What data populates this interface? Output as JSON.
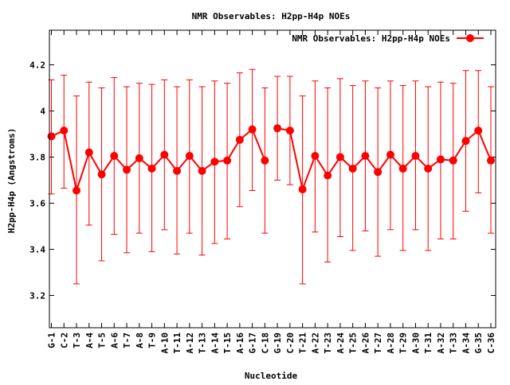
{
  "chart_data": {
    "type": "line",
    "title": "NMR Observables: H2pp-H4p NOEs",
    "xlabel": "Nucleotide",
    "ylabel": "H2pp-H4p (Angstroms)",
    "ylim": [
      3.06,
      4.35
    ],
    "yticks": [
      3.2,
      3.4,
      3.6,
      3.8,
      4,
      4.2
    ],
    "ytick_labels": [
      "3.2",
      "3.4",
      "3.6",
      "3.8",
      "4",
      "4.2"
    ],
    "grid": false,
    "legend": "top-right",
    "color": "#ff0000",
    "categories": [
      "G-1",
      "C-2",
      "T-3",
      "A-4",
      "T-5",
      "A-6",
      "T-7",
      "A-8",
      "T-9",
      "A-10",
      "T-11",
      "A-12",
      "T-13",
      "A-14",
      "T-15",
      "A-16",
      "G-17",
      "C-18",
      "G-19",
      "C-20",
      "T-21",
      "A-22",
      "T-23",
      "A-24",
      "T-25",
      "A-26",
      "T-27",
      "A-28",
      "T-29",
      "A-30",
      "T-31",
      "A-32",
      "T-33",
      "A-34",
      "G-35",
      "C-36"
    ],
    "series": [
      {
        "name": "NMR Observables: H2pp-H4p NOEs",
        "segments": [
          {
            "x": [
              1,
              2,
              3,
              4,
              5,
              6,
              7,
              8,
              9,
              10,
              11,
              12,
              13,
              14,
              15,
              16,
              17,
              18
            ],
            "y": [
              3.89,
              3.915,
              3.655,
              3.82,
              3.725,
              3.805,
              3.745,
              3.795,
              3.75,
              3.81,
              3.74,
              3.805,
              3.74,
              3.78,
              3.785,
              3.875,
              3.92,
              3.785
            ],
            "err_low": [
              3.64,
              3.665,
              3.25,
              3.505,
              3.35,
              3.465,
              3.385,
              3.47,
              3.39,
              3.485,
              3.38,
              3.47,
              3.375,
              3.425,
              3.445,
              3.585,
              3.655,
              3.47
            ],
            "err_high": [
              4.135,
              4.155,
              4.065,
              4.125,
              4.1,
              4.145,
              4.105,
              4.12,
              4.115,
              4.135,
              4.105,
              4.135,
              4.105,
              4.13,
              4.12,
              4.165,
              4.18,
              4.1
            ]
          },
          {
            "x": [
              19,
              20,
              21,
              22,
              23,
              24,
              25,
              26,
              27,
              28,
              29,
              30,
              31,
              32,
              33,
              34,
              35,
              36
            ],
            "y": [
              3.925,
              3.915,
              3.66,
              3.805,
              3.72,
              3.8,
              3.75,
              3.805,
              3.735,
              3.81,
              3.75,
              3.805,
              3.75,
              3.79,
              3.785,
              3.87,
              3.915,
              3.785
            ],
            "err_low": [
              3.7,
              3.68,
              3.25,
              3.475,
              3.345,
              3.455,
              3.395,
              3.48,
              3.37,
              3.485,
              3.395,
              3.485,
              3.395,
              3.445,
              3.445,
              3.565,
              3.645,
              3.47
            ],
            "err_high": [
              4.15,
              4.15,
              4.065,
              4.13,
              4.1,
              4.14,
              4.11,
              4.13,
              4.1,
              4.13,
              4.11,
              4.13,
              4.105,
              4.125,
              4.12,
              4.175,
              4.175,
              4.105
            ]
          }
        ]
      }
    ]
  }
}
